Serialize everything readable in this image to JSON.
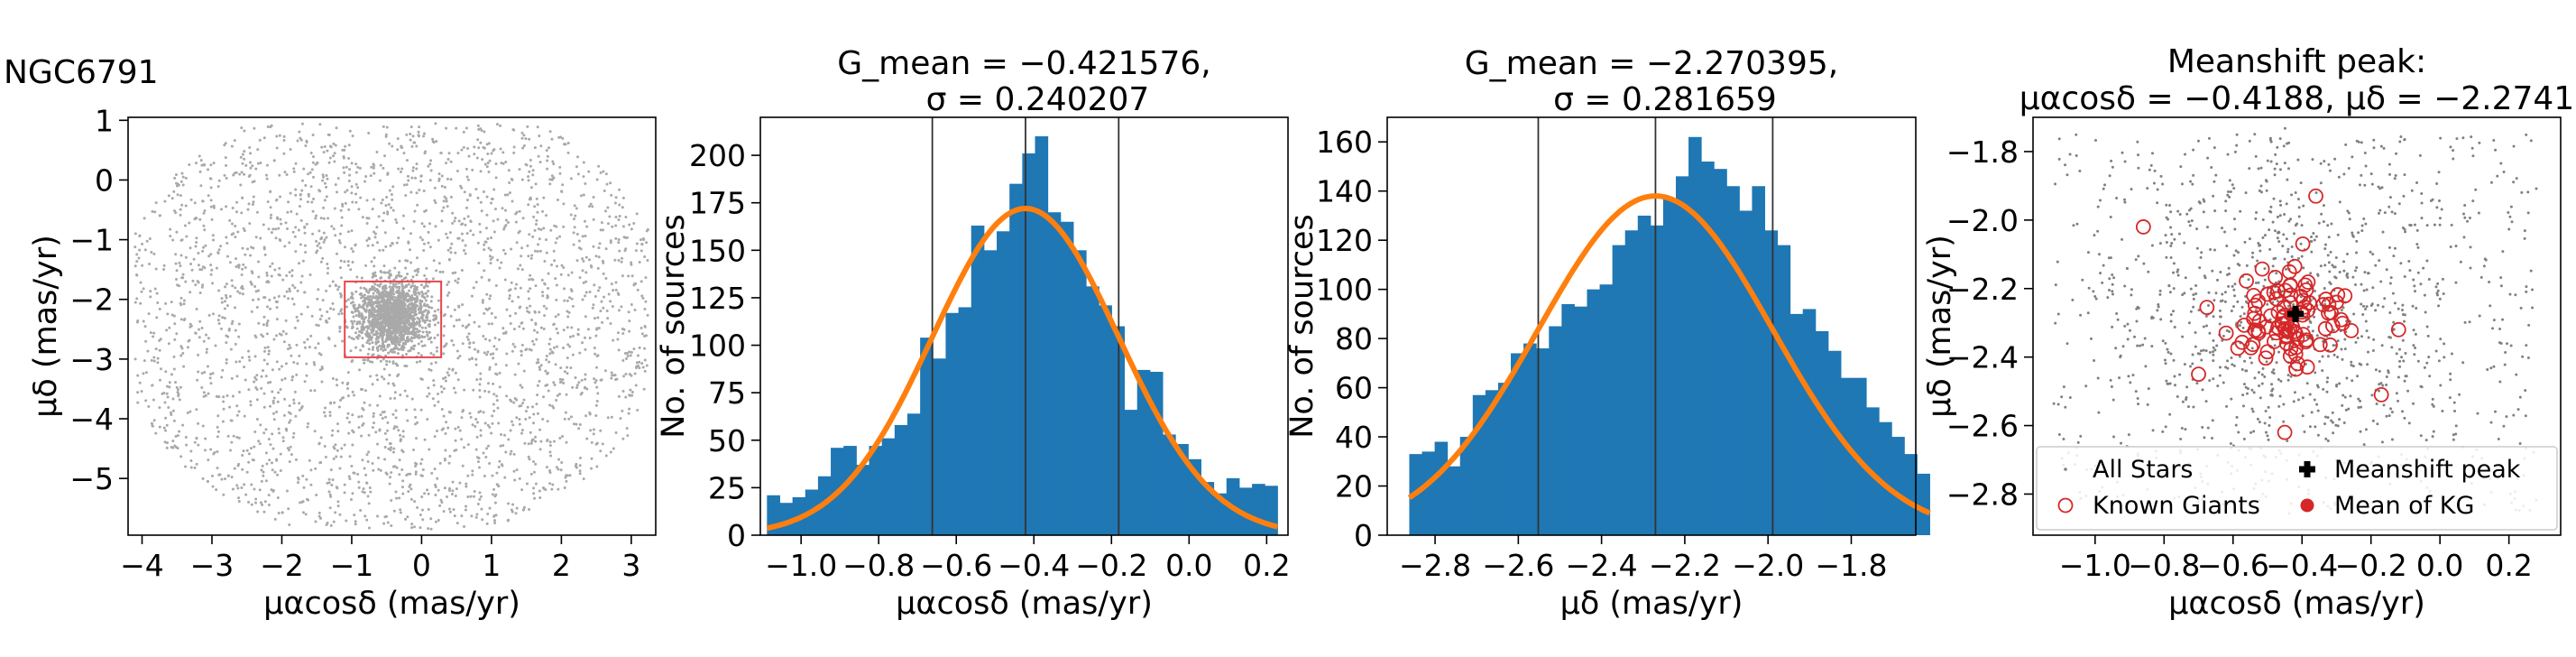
{
  "figure": {
    "cluster_name": "NGC6791"
  },
  "chart_data": [
    {
      "id": "p1",
      "type": "scatter",
      "title": "",
      "xlabel": "μαcosδ (mas/yr)",
      "ylabel": "μδ (mas/yr)",
      "xlim": [
        -4.2,
        3.35
      ],
      "ylim": [
        -5.95,
        1.05
      ],
      "xticks": [
        -4,
        -3,
        -2,
        -1,
        0,
        1,
        2,
        3
      ],
      "yticks": [
        -5,
        -4,
        -3,
        -2,
        -1,
        0,
        1
      ],
      "xtick_labels": [
        "−4",
        "−3",
        "−2",
        "−1",
        "0",
        "1",
        "2",
        "3"
      ],
      "ytick_labels": [
        "−5",
        "−4",
        "−3",
        "−2",
        "−1",
        "0",
        "1"
      ],
      "points": {
        "background_count": 3000,
        "cluster_count": 1400,
        "center": [
          -0.42,
          -2.27
        ],
        "cluster_sigma": [
          0.24,
          0.28
        ],
        "color": "#a9a9a9"
      },
      "selection_box": {
        "x0": -1.1,
        "x1": 0.28,
        "y0": -2.97,
        "y1": -1.7,
        "color": "#e8474a"
      }
    },
    {
      "id": "p2",
      "type": "bar",
      "title_lines": [
        "G_mean = −0.421576,",
        "σ = 0.240207"
      ],
      "xlabel": "μαcosδ (mas/yr)",
      "ylabel": "No. of sources",
      "xlim": [
        -1.105,
        0.255
      ],
      "ylim": [
        0,
        220
      ],
      "xticks": [
        -1.0,
        -0.8,
        -0.6,
        -0.4,
        -0.2,
        0.0,
        0.2
      ],
      "xtick_labels": [
        "−1.0",
        "−0.8",
        "−0.6",
        "−0.4",
        "−0.2",
        "0.0",
        "0.2"
      ],
      "yticks": [
        0,
        25,
        50,
        75,
        100,
        125,
        150,
        175,
        200
      ],
      "bin_start": -1.088,
      "bin_width": 0.0329,
      "counts": [
        21,
        17,
        20,
        24,
        31,
        46,
        47,
        37,
        47,
        51,
        58,
        64,
        104,
        93,
        117,
        120,
        163,
        150,
        160,
        185,
        201,
        210,
        170,
        165,
        150,
        131,
        121,
        110,
        66,
        87,
        86,
        53,
        48,
        40,
        28,
        22,
        30,
        25,
        27,
        26
      ],
      "fit": {
        "amplitude": 172,
        "mean": -0.421576,
        "sigma": 0.240207,
        "color": "#ff7f0e"
      },
      "vlines": [
        -0.661783,
        -0.421576,
        -0.181369
      ],
      "bar_color": "#1f77b4"
    },
    {
      "id": "p3",
      "type": "bar",
      "title_lines": [
        "G_mean = −2.270395,",
        "σ = 0.281659"
      ],
      "xlabel": "μδ (mas/yr)",
      "ylabel": "No. of sources",
      "xlim": [
        -2.915,
        -1.645
      ],
      "ylim": [
        0,
        170
      ],
      "xticks": [
        -2.8,
        -2.6,
        -2.4,
        -2.2,
        -2.0,
        -1.8
      ],
      "xtick_labels": [
        "−2.8",
        "−2.6",
        "−2.4",
        "−2.2",
        "−2.0",
        "−1.8"
      ],
      "yticks": [
        0,
        20,
        40,
        60,
        80,
        100,
        120,
        140,
        160
      ],
      "bin_start": -2.862,
      "bin_width": 0.0305,
      "counts": [
        33,
        34,
        38,
        28,
        40,
        57,
        59,
        62,
        74,
        78,
        76,
        85,
        94,
        93,
        100,
        102,
        118,
        124,
        130,
        126,
        137,
        146,
        162,
        152,
        149,
        142,
        132,
        142,
        124,
        118,
        90,
        92,
        83,
        75,
        64,
        64,
        52,
        46,
        40,
        33,
        25
      ],
      "fit": {
        "amplitude": 138,
        "mean": -2.270395,
        "sigma": 0.281659,
        "color": "#ff7f0e"
      },
      "vlines": [
        -2.552054,
        -2.270395,
        -1.988736
      ],
      "bar_color": "#1f77b4"
    },
    {
      "id": "p4",
      "type": "scatter",
      "title_lines": [
        "Meanshift peak:",
        "μαcosδ = −0.4188, μδ = −2.2741"
      ],
      "xlabel": "μαcosδ (mas/yr)",
      "ylabel": "μδ (mas/yr)",
      "xlim": [
        -1.18,
        0.35
      ],
      "ylim": [
        -2.92,
        -1.7
      ],
      "xticks": [
        -1.0,
        -0.8,
        -0.6,
        -0.4,
        -0.2,
        0.0,
        0.2
      ],
      "xtick_labels": [
        "−1.0",
        "−0.8",
        "−0.6",
        "−0.4",
        "−0.2",
        "0.0",
        "0.2"
      ],
      "yticks": [
        -2.8,
        -2.6,
        -2.4,
        -2.2,
        -2.0,
        -1.8
      ],
      "ytick_labels": [
        "−2.8",
        "−2.6",
        "−2.4",
        "−2.2",
        "−2.0",
        "−1.8"
      ],
      "meanshift_peak": [
        -0.4188,
        -2.2741
      ],
      "mean_of_kg": [
        -0.43,
        -2.276
      ],
      "known_giants_count": 90,
      "all_stars_count": 1300,
      "legend": {
        "position": "lower",
        "items": [
          {
            "label": "All Stars",
            "marker": "dot",
            "color": "#808080"
          },
          {
            "label": "Meanshift peak",
            "marker": "plus",
            "color": "#000000"
          },
          {
            "label": "Known Giants",
            "marker": "ring",
            "color": "#d62728"
          },
          {
            "label": "Mean of KG",
            "marker": "disk",
            "color": "#d62728"
          }
        ]
      }
    }
  ]
}
